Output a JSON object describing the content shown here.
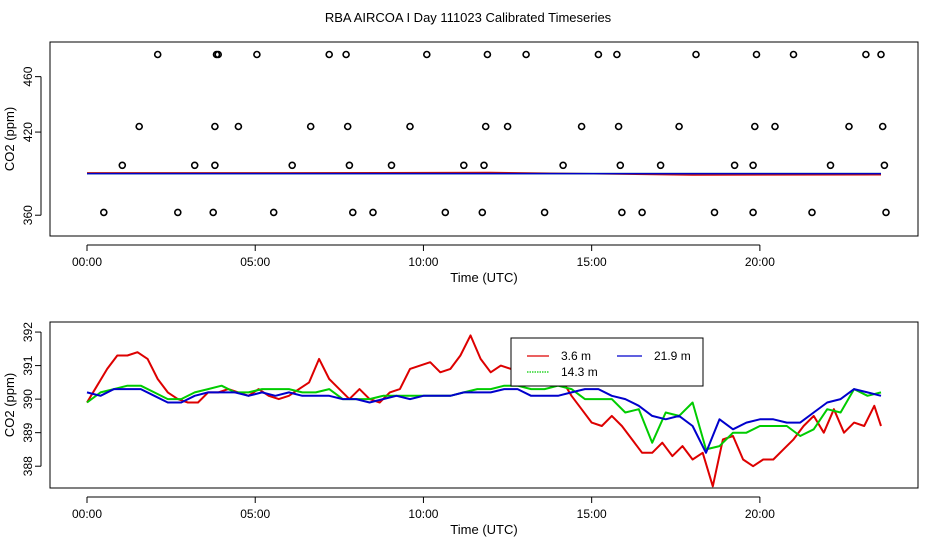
{
  "title": "RBA AIRCOA I  Day 111023  Calibrated Timeseries",
  "colors": {
    "red": "#dd0000",
    "green": "#00cc00",
    "blue": "#0000cc",
    "axis": "#000000"
  },
  "chart_data": [
    {
      "type": "scatter",
      "xlabel": "Time (UTC)",
      "ylabel": "CO2 (ppm)",
      "xlim": [
        -1.1,
        24.7
      ],
      "ylim": [
        345,
        485
      ],
      "x_ticks": [
        0,
        5,
        10,
        15,
        20
      ],
      "x_tick_labels": [
        "00:00",
        "05:00",
        "10:00",
        "15:00",
        "20:00"
      ],
      "y_ticks": [
        360,
        420,
        460
      ],
      "y_tick_labels": [
        "360",
        "420",
        "460"
      ],
      "points": {
        "marker": "open-circle",
        "x": [
          0.5,
          1.05,
          1.55,
          2.1,
          2.7,
          3.2,
          3.75,
          3.8,
          3.8,
          3.85,
          3.9,
          4.5,
          5.05,
          5.55,
          6.1,
          6.65,
          7.2,
          7.7,
          7.75,
          7.8,
          7.9,
          8.5,
          9.05,
          9.6,
          10.1,
          10.65,
          11.2,
          11.75,
          11.8,
          11.85,
          11.9,
          12.5,
          13.05,
          13.6,
          14.15,
          14.7,
          15.2,
          15.75,
          15.8,
          15.85,
          15.9,
          16.5,
          17.05,
          17.6,
          18.1,
          18.65,
          19.25,
          19.8,
          19.8,
          19.85,
          19.9,
          20.45,
          21,
          21.55,
          22.1,
          22.65,
          23.15,
          23.6,
          23.65,
          23.7,
          23.75
        ],
        "y": [
          362,
          396,
          424,
          476,
          362,
          396,
          362,
          396,
          424,
          476,
          476,
          424,
          476,
          362,
          396,
          424,
          476,
          476,
          424,
          396,
          362,
          362,
          396,
          424,
          476,
          362,
          396,
          362,
          396,
          424,
          476,
          424,
          476,
          362,
          396,
          424,
          476,
          476,
          424,
          396,
          362,
          362,
          396,
          424,
          476,
          362,
          396,
          362,
          396,
          424,
          476,
          424,
          476,
          362,
          396,
          424,
          476,
          476,
          424,
          396,
          362
        ]
      },
      "series": [
        {
          "color": "#dd0000",
          "x": [
            0,
            6,
            12,
            18,
            23.6
          ],
          "y": [
            390.5,
            390.5,
            390.8,
            389,
            389.2
          ]
        },
        {
          "color": "#00cc00",
          "x": [
            0,
            12,
            23.6
          ],
          "y": [
            390,
            390,
            390
          ]
        },
        {
          "color": "#0000cc",
          "x": [
            0,
            12,
            23.6
          ],
          "y": [
            390,
            390,
            390
          ]
        }
      ]
    },
    {
      "type": "line",
      "xlabel": "Time (UTC)",
      "ylabel": "CO2 (ppm)",
      "xlim": [
        -1.1,
        24.7
      ],
      "ylim": [
        387.35,
        392.3
      ],
      "x_ticks": [
        0,
        5,
        10,
        15,
        20
      ],
      "x_tick_labels": [
        "00:00",
        "05:00",
        "10:00",
        "15:00",
        "20:00"
      ],
      "y_ticks": [
        388,
        389,
        390,
        391,
        392
      ],
      "y_tick_labels": [
        "388",
        "389",
        "390",
        "391",
        "392"
      ],
      "legend": {
        "placement": "top-center-right",
        "entries": [
          "3.6 m",
          "14.3 m",
          "21.9 m"
        ]
      },
      "series": [
        {
          "name": "3.6 m",
          "color": "#dd0000",
          "x": [
            0,
            0.3,
            0.6,
            0.9,
            1.2,
            1.5,
            1.8,
            2.1,
            2.4,
            2.7,
            3.0,
            3.3,
            3.6,
            3.9,
            4.2,
            4.5,
            4.8,
            5.1,
            5.4,
            5.7,
            6.0,
            6.3,
            6.6,
            6.9,
            7.2,
            7.5,
            7.8,
            8.1,
            8.4,
            8.7,
            9.0,
            9.3,
            9.6,
            9.9,
            10.2,
            10.5,
            10.8,
            11.1,
            11.4,
            11.7,
            12.0,
            12.3,
            12.6,
            12.9,
            13.2,
            13.5,
            13.8,
            14.1,
            14.4,
            14.7,
            15.0,
            15.3,
            15.6,
            15.9,
            16.2,
            16.5,
            16.8,
            17.1,
            17.4,
            17.7,
            18.0,
            18.3,
            18.6,
            18.9,
            19.2,
            19.5,
            19.8,
            20.1,
            20.4,
            20.7,
            21.0,
            21.3,
            21.6,
            21.9,
            22.2,
            22.5,
            22.8,
            23.1,
            23.4,
            23.6
          ],
          "y": [
            389.9,
            390.4,
            390.9,
            391.3,
            391.3,
            391.4,
            391.2,
            390.6,
            390.2,
            390.0,
            389.9,
            389.9,
            390.2,
            390.2,
            390.3,
            390.2,
            390.1,
            390.3,
            390.1,
            390.0,
            390.1,
            390.3,
            390.5,
            391.2,
            390.6,
            390.3,
            390.0,
            390.3,
            390.0,
            389.9,
            390.2,
            390.3,
            390.9,
            391.0,
            391.1,
            390.8,
            390.9,
            391.3,
            391.9,
            391.2,
            390.8,
            391.0,
            390.9,
            391.2,
            390.9,
            390.8,
            390.7,
            390.6,
            390.1,
            389.7,
            389.3,
            389.2,
            389.5,
            389.2,
            388.8,
            388.4,
            388.4,
            388.7,
            388.3,
            388.6,
            388.2,
            388.4,
            387.4,
            388.8,
            388.9,
            388.2,
            388.0,
            388.2,
            388.2,
            388.5,
            388.8,
            389.2,
            389.5,
            389.0,
            389.7,
            389.0,
            389.3,
            389.2,
            389.8,
            389.2
          ]
        },
        {
          "name": "14.3 m",
          "color": "#00cc00",
          "x": [
            0,
            0.4,
            0.8,
            1.2,
            1.6,
            2.0,
            2.4,
            2.8,
            3.2,
            3.6,
            4.0,
            4.4,
            4.8,
            5.2,
            5.6,
            6.0,
            6.4,
            6.8,
            7.2,
            7.6,
            8.0,
            8.4,
            8.8,
            9.2,
            9.6,
            10.0,
            10.4,
            10.8,
            11.2,
            11.6,
            12.0,
            12.4,
            12.8,
            13.2,
            13.6,
            14.0,
            14.4,
            14.8,
            15.2,
            15.6,
            16.0,
            16.4,
            16.8,
            17.2,
            17.6,
            18.0,
            18.4,
            18.8,
            19.2,
            19.6,
            20.0,
            20.4,
            20.8,
            21.2,
            21.6,
            22.0,
            22.4,
            22.8,
            23.2,
            23.6
          ],
          "y": [
            389.9,
            390.2,
            390.3,
            390.4,
            390.4,
            390.2,
            390.0,
            390.0,
            390.2,
            390.3,
            390.4,
            390.2,
            390.2,
            390.3,
            390.3,
            390.3,
            390.2,
            390.2,
            390.3,
            390.0,
            390.0,
            390.0,
            390.1,
            390.1,
            390.1,
            390.1,
            390.1,
            390.1,
            390.2,
            390.3,
            390.3,
            390.4,
            390.4,
            390.3,
            390.3,
            390.4,
            390.3,
            390.0,
            390.0,
            390.0,
            389.6,
            389.7,
            388.7,
            389.6,
            389.5,
            389.9,
            388.5,
            388.6,
            389.0,
            389.0,
            389.2,
            389.2,
            389.2,
            388.9,
            389.1,
            389.7,
            389.6,
            390.3,
            390.1,
            390.2
          ]
        },
        {
          "name": "21.9 m",
          "color": "#0000cc",
          "x": [
            0,
            0.4,
            0.8,
            1.2,
            1.6,
            2.0,
            2.4,
            2.8,
            3.2,
            3.6,
            4.0,
            4.4,
            4.8,
            5.2,
            5.6,
            6.0,
            6.4,
            6.8,
            7.2,
            7.6,
            8.0,
            8.4,
            8.8,
            9.2,
            9.6,
            10.0,
            10.4,
            10.8,
            11.2,
            11.6,
            12.0,
            12.4,
            12.8,
            13.2,
            13.6,
            14.0,
            14.4,
            14.8,
            15.2,
            15.6,
            16.0,
            16.4,
            16.8,
            17.2,
            17.6,
            18.0,
            18.4,
            18.8,
            19.2,
            19.6,
            20.0,
            20.4,
            20.8,
            21.2,
            21.6,
            22.0,
            22.4,
            22.8,
            23.2,
            23.6
          ],
          "y": [
            390.2,
            390.1,
            390.3,
            390.3,
            390.3,
            390.1,
            389.9,
            389.9,
            390.1,
            390.2,
            390.2,
            390.2,
            390.1,
            390.2,
            390.1,
            390.2,
            390.1,
            390.1,
            390.1,
            390.0,
            390.0,
            389.9,
            390.0,
            390.1,
            390.0,
            390.1,
            390.1,
            390.1,
            390.2,
            390.2,
            390.2,
            390.3,
            390.3,
            390.1,
            390.1,
            390.1,
            390.2,
            390.3,
            390.3,
            390.1,
            390.0,
            389.8,
            389.5,
            389.4,
            389.5,
            389.2,
            388.4,
            389.4,
            389.1,
            389.3,
            389.4,
            389.4,
            389.3,
            389.3,
            389.6,
            389.9,
            390.0,
            390.3,
            390.2,
            390.1
          ]
        }
      ]
    }
  ]
}
